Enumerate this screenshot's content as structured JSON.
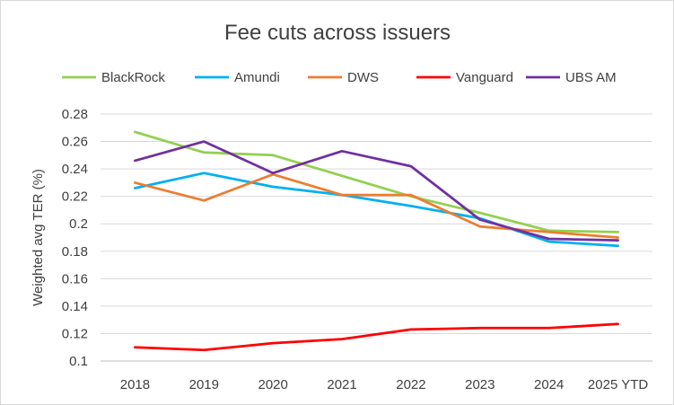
{
  "chart_data": {
    "type": "line",
    "title": "Fee cuts across issuers",
    "xlabel": "",
    "ylabel": "Weighted avg TER (%)",
    "categories": [
      "2018",
      "2019",
      "2020",
      "2021",
      "2022",
      "2023",
      "2024",
      "2025 YTD"
    ],
    "ylim": [
      0.1,
      0.28
    ],
    "yticks": [
      "0.1",
      "0.12",
      "0.14",
      "0.16",
      "0.18",
      "0.2",
      "0.22",
      "0.24",
      "0.26",
      "0.28"
    ],
    "grid": true,
    "legend_position": "top",
    "series": [
      {
        "name": "BlackRock",
        "color": "#92d050",
        "values": [
          0.267,
          0.252,
          0.25,
          0.235,
          0.22,
          0.208,
          0.195,
          0.194
        ]
      },
      {
        "name": "Amundi",
        "color": "#00b0f0",
        "values": [
          0.226,
          0.237,
          0.227,
          0.221,
          0.213,
          0.204,
          0.187,
          0.184
        ]
      },
      {
        "name": "DWS",
        "color": "#ed7d31",
        "values": [
          0.23,
          0.217,
          0.236,
          0.221,
          0.221,
          0.198,
          0.194,
          0.19
        ]
      },
      {
        "name": "Vanguard",
        "color": "#ff0000",
        "values": [
          0.11,
          0.108,
          0.113,
          0.116,
          0.123,
          0.124,
          0.124,
          0.127
        ]
      },
      {
        "name": "UBS AM",
        "color": "#7030a0",
        "values": [
          0.246,
          0.26,
          0.237,
          0.253,
          0.242,
          0.203,
          0.189,
          0.188
        ]
      }
    ]
  }
}
